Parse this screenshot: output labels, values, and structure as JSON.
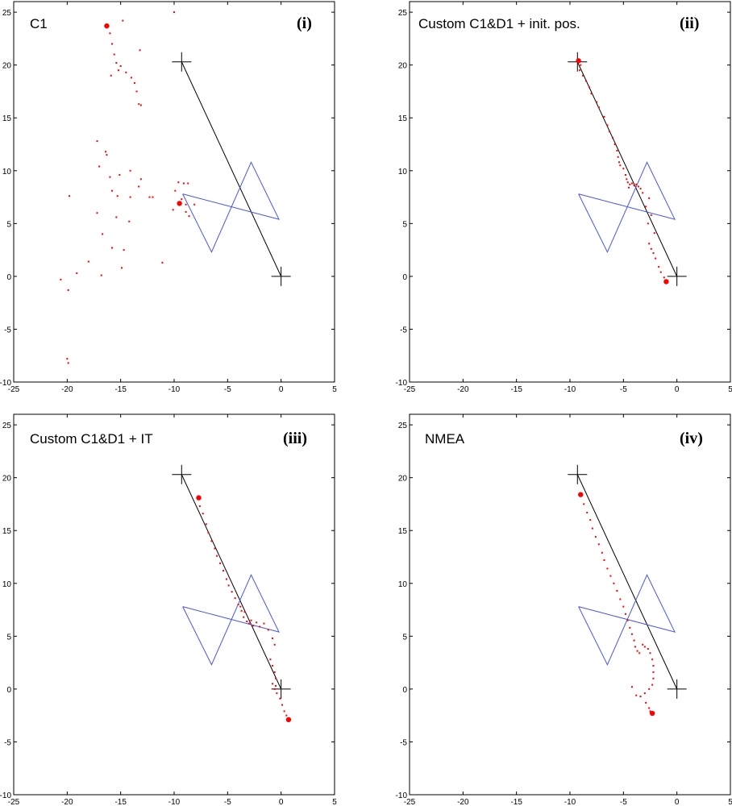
{
  "chart_data": [
    {
      "type": "scatter",
      "title": "C1",
      "panel_label": "(i)",
      "xlim": [
        -25,
        5
      ],
      "ylim": [
        -10,
        26
      ],
      "xticks": [
        -25,
        -20,
        -15,
        -10,
        -5,
        0,
        5
      ],
      "yticks": [
        -10,
        -5,
        0,
        5,
        10,
        15,
        20,
        25
      ],
      "colors": {
        "points": "#ff0000",
        "polygon": "#4455ee",
        "line": "#000000",
        "marker": "#000000"
      },
      "reference_line": [
        [
          -9.3,
          20.3
        ],
        [
          0,
          0
        ]
      ],
      "reference_markers": [
        [
          -9.3,
          20.3
        ],
        [
          0,
          0
        ]
      ],
      "polygon": [
        [
          -9.2,
          7.8
        ],
        [
          -0.2,
          5.4
        ],
        [
          -2.8,
          10.8
        ],
        [
          -6.5,
          2.3
        ],
        [
          -9.2,
          7.8
        ]
      ],
      "points": [
        [
          -16.3,
          23.7
        ],
        [
          -16.0,
          23.0
        ],
        [
          -15.8,
          22.0
        ],
        [
          -15.6,
          21.0
        ],
        [
          -15.4,
          20.2
        ],
        [
          -15.2,
          19.5
        ],
        [
          -15.0,
          19.9
        ],
        [
          -14.5,
          19.3
        ],
        [
          -14.0,
          18.8
        ],
        [
          -13.7,
          18.3
        ],
        [
          -13.5,
          17.5
        ],
        [
          -13.3,
          16.3
        ],
        [
          -13.1,
          16.2
        ],
        [
          -15.9,
          19.0
        ],
        [
          -13.2,
          21.4
        ],
        [
          -14.8,
          24.2
        ],
        [
          -10.0,
          25.0
        ],
        [
          -17.2,
          12.8
        ],
        [
          -16.4,
          11.8
        ],
        [
          -16.3,
          11.5
        ],
        [
          -17.0,
          10.4
        ],
        [
          -14.1,
          10.0
        ],
        [
          -15.1,
          9.6
        ],
        [
          -13.1,
          9.2
        ],
        [
          -16.0,
          9.4
        ],
        [
          -13.3,
          8.5
        ],
        [
          -15.8,
          8.1
        ],
        [
          -19.8,
          7.6
        ],
        [
          -15.3,
          7.6
        ],
        [
          -14.1,
          7.5
        ],
        [
          -12.3,
          7.5
        ],
        [
          -12.0,
          7.5
        ],
        [
          -17.2,
          6.0
        ],
        [
          -15.4,
          5.6
        ],
        [
          -14.2,
          5.2
        ],
        [
          -16.7,
          4.0
        ],
        [
          -15.8,
          2.7
        ],
        [
          -14.7,
          2.5
        ],
        [
          -18.0,
          1.4
        ],
        [
          -11.1,
          1.3
        ],
        [
          -14.9,
          0.8
        ],
        [
          -19.1,
          0.3
        ],
        [
          -16.8,
          0.1
        ],
        [
          -20.6,
          -0.3
        ],
        [
          -19.9,
          -1.3
        ],
        [
          -20.0,
          -7.8
        ],
        [
          -19.9,
          -8.2
        ],
        [
          -9.6,
          8.9
        ],
        [
          -9.1,
          8.8
        ],
        [
          -8.7,
          8.8
        ],
        [
          -9.9,
          8.1
        ],
        [
          -9.3,
          7.3
        ],
        [
          -8.9,
          6.8
        ],
        [
          -8.1,
          6.8
        ],
        [
          -10.1,
          6.3
        ],
        [
          -8.9,
          6.1
        ],
        [
          -8.6,
          5.7
        ]
      ],
      "start_point": [
        -16.3,
        23.7
      ],
      "end_point": [
        -9.5,
        6.9
      ]
    },
    {
      "type": "scatter",
      "title": "Custom C1&D1 + init. pos.",
      "panel_label": "(ii)",
      "xlim": [
        -25,
        5
      ],
      "ylim": [
        -10,
        26
      ],
      "xticks": [
        -25,
        -20,
        -15,
        -10,
        -5,
        0,
        5
      ],
      "yticks": [
        -10,
        -5,
        0,
        5,
        10,
        15,
        20,
        25
      ],
      "colors": {
        "points": "#ff0000",
        "polygon": "#4455ee",
        "line": "#000000",
        "marker": "#000000"
      },
      "reference_line": [
        [
          -9.3,
          20.3
        ],
        [
          0,
          0
        ]
      ],
      "reference_markers": [
        [
          -9.3,
          20.3
        ],
        [
          0,
          0
        ]
      ],
      "polygon": [
        [
          -9.2,
          7.8
        ],
        [
          -0.2,
          5.4
        ],
        [
          -2.8,
          10.8
        ],
        [
          -6.5,
          2.3
        ],
        [
          -9.2,
          7.8
        ]
      ],
      "points": [
        [
          -9.2,
          20.4
        ],
        [
          -9.0,
          20.0
        ],
        [
          -9.1,
          19.5
        ],
        [
          -8.8,
          19.0
        ],
        [
          -8.5,
          18.5
        ],
        [
          -8.2,
          17.9
        ],
        [
          -8.0,
          17.3
        ],
        [
          -7.5,
          16.5
        ],
        [
          -7.3,
          16.0
        ],
        [
          -6.8,
          15.1
        ],
        [
          -6.5,
          14.3
        ],
        [
          -6.3,
          13.7
        ],
        [
          -6.0,
          13.1
        ],
        [
          -5.8,
          12.5
        ],
        [
          -5.6,
          11.9
        ],
        [
          -5.5,
          11.3
        ],
        [
          -5.4,
          10.8
        ],
        [
          -5.3,
          10.5
        ],
        [
          -5.0,
          10.2
        ],
        [
          -4.8,
          9.6
        ],
        [
          -4.7,
          9.2
        ],
        [
          -4.6,
          8.9
        ],
        [
          -4.4,
          8.7
        ],
        [
          -4.2,
          8.8
        ],
        [
          -4.0,
          8.6
        ],
        [
          -3.8,
          8.7
        ],
        [
          -3.6,
          8.5
        ],
        [
          -3.4,
          8.3
        ],
        [
          -4.5,
          8.4
        ],
        [
          -3.2,
          7.9
        ],
        [
          -2.6,
          7.4
        ],
        [
          -2.9,
          6.6
        ],
        [
          -2.4,
          5.8
        ],
        [
          -2.7,
          5.0
        ],
        [
          -2.1,
          4.1
        ],
        [
          -2.6,
          3.1
        ],
        [
          -2.4,
          2.6
        ],
        [
          -2.2,
          2.2
        ],
        [
          -2.0,
          1.7
        ],
        [
          -1.7,
          0.9
        ],
        [
          -1.5,
          0.4
        ],
        [
          -1.2,
          -0.1
        ],
        [
          -1.0,
          -0.4
        ]
      ],
      "start_point": [
        -9.2,
        20.4
      ],
      "end_point": [
        -1.0,
        -0.5
      ]
    },
    {
      "type": "scatter",
      "title": "Custom C1&D1 + IT",
      "panel_label": "(iii)",
      "xlim": [
        -25,
        5
      ],
      "ylim": [
        -10,
        26
      ],
      "xticks": [
        -25,
        -20,
        -15,
        -10,
        -5,
        0,
        5
      ],
      "yticks": [
        -10,
        -5,
        0,
        5,
        10,
        15,
        20,
        25
      ],
      "colors": {
        "points": "#ff0000",
        "polygon": "#4455ee",
        "line": "#000000",
        "marker": "#000000"
      },
      "reference_line": [
        [
          -9.3,
          20.3
        ],
        [
          0,
          0
        ]
      ],
      "reference_markers": [
        [
          -9.3,
          20.3
        ],
        [
          0,
          0
        ]
      ],
      "polygon": [
        [
          -9.2,
          7.8
        ],
        [
          -0.2,
          5.4
        ],
        [
          -2.8,
          10.8
        ],
        [
          -6.5,
          2.3
        ],
        [
          -9.2,
          7.8
        ]
      ],
      "points": [
        [
          -7.7,
          18.1
        ],
        [
          -7.6,
          17.3
        ],
        [
          -7.3,
          16.6
        ],
        [
          -7.0,
          15.6
        ],
        [
          -6.8,
          14.8
        ],
        [
          -6.5,
          14.0
        ],
        [
          -6.2,
          13.3
        ],
        [
          -6.0,
          12.6
        ],
        [
          -5.7,
          11.9
        ],
        [
          -5.4,
          11.2
        ],
        [
          -5.1,
          10.4
        ],
        [
          -4.9,
          9.8
        ],
        [
          -4.6,
          9.2
        ],
        [
          -4.3,
          8.6
        ],
        [
          -4.0,
          8.0
        ],
        [
          -3.7,
          7.4
        ],
        [
          -3.5,
          6.8
        ],
        [
          -3.2,
          6.4
        ],
        [
          -3.0,
          6.2
        ],
        [
          -2.8,
          6.5
        ],
        [
          -2.6,
          6.0
        ],
        [
          -2.3,
          6.3
        ],
        [
          -2.0,
          5.9
        ],
        [
          -1.6,
          6.2
        ],
        [
          -1.2,
          5.6
        ],
        [
          -0.8,
          4.8
        ],
        [
          -0.6,
          4.2
        ],
        [
          -3.8,
          7.8
        ],
        [
          -3.4,
          7.3
        ],
        [
          -1.0,
          2.8
        ],
        [
          -0.8,
          2.2
        ],
        [
          -0.6,
          1.6
        ],
        [
          -0.5,
          1.0
        ],
        [
          -0.8,
          0.5
        ],
        [
          -0.6,
          0.0
        ],
        [
          -0.4,
          -0.4
        ],
        [
          -0.1,
          -0.9
        ],
        [
          0.1,
          -1.5
        ],
        [
          0.3,
          -2.1
        ],
        [
          0.5,
          -2.5
        ],
        [
          -0.5,
          0.3
        ]
      ],
      "start_point": [
        -7.7,
        18.1
      ],
      "end_point": [
        0.7,
        -2.9
      ]
    },
    {
      "type": "scatter",
      "title": "NMEA",
      "panel_label": "(iv)",
      "xlim": [
        -25,
        5
      ],
      "ylim": [
        -10,
        26
      ],
      "xticks": [
        -25,
        -20,
        -15,
        -10,
        -5,
        0,
        5
      ],
      "yticks": [
        -10,
        -5,
        0,
        5,
        10,
        15,
        20,
        25
      ],
      "colors": {
        "points": "#ff0000",
        "polygon": "#4455ee",
        "line": "#000000",
        "marker": "#000000"
      },
      "reference_line": [
        [
          -9.3,
          20.3
        ],
        [
          0,
          0
        ]
      ],
      "reference_markers": [
        [
          -9.3,
          20.3
        ],
        [
          0,
          0
        ]
      ],
      "polygon": [
        [
          -9.2,
          7.8
        ],
        [
          -0.2,
          5.4
        ],
        [
          -2.8,
          10.8
        ],
        [
          -6.5,
          2.3
        ],
        [
          -9.2,
          7.8
        ]
      ],
      "points": [
        [
          -9.0,
          18.3
        ],
        [
          -8.7,
          17.5
        ],
        [
          -8.4,
          16.7
        ],
        [
          -8.1,
          16.0
        ],
        [
          -7.9,
          15.2
        ],
        [
          -7.6,
          14.4
        ],
        [
          -7.3,
          13.7
        ],
        [
          -7.0,
          12.9
        ],
        [
          -6.8,
          12.2
        ],
        [
          -6.5,
          11.4
        ],
        [
          -6.2,
          10.7
        ],
        [
          -5.9,
          10.0
        ],
        [
          -5.6,
          9.3
        ],
        [
          -5.3,
          8.5
        ],
        [
          -5.0,
          7.8
        ],
        [
          -4.8,
          7.1
        ],
        [
          -4.6,
          6.5
        ],
        [
          -4.4,
          5.8
        ],
        [
          -4.2,
          5.2
        ],
        [
          -4.0,
          4.6
        ],
        [
          -3.9,
          4.0
        ],
        [
          -3.7,
          3.6
        ],
        [
          -3.5,
          3.4
        ],
        [
          -3.2,
          4.2
        ],
        [
          -3.0,
          4.0
        ],
        [
          -2.7,
          3.8
        ],
        [
          -2.5,
          3.4
        ],
        [
          -2.3,
          2.8
        ],
        [
          -2.2,
          2.2
        ],
        [
          -2.2,
          1.6
        ],
        [
          -2.2,
          1.0
        ],
        [
          -2.3,
          0.4
        ],
        [
          -2.6,
          0.0
        ],
        [
          -3.0,
          -0.4
        ],
        [
          -3.4,
          -0.7
        ],
        [
          -3.8,
          -0.6
        ],
        [
          -4.2,
          0.2
        ],
        [
          -2.9,
          -1.3
        ],
        [
          -2.6,
          -1.8
        ],
        [
          -2.5,
          -2.1
        ]
      ],
      "start_point": [
        -9.0,
        18.4
      ],
      "end_point": [
        -2.3,
        -2.3
      ]
    }
  ]
}
